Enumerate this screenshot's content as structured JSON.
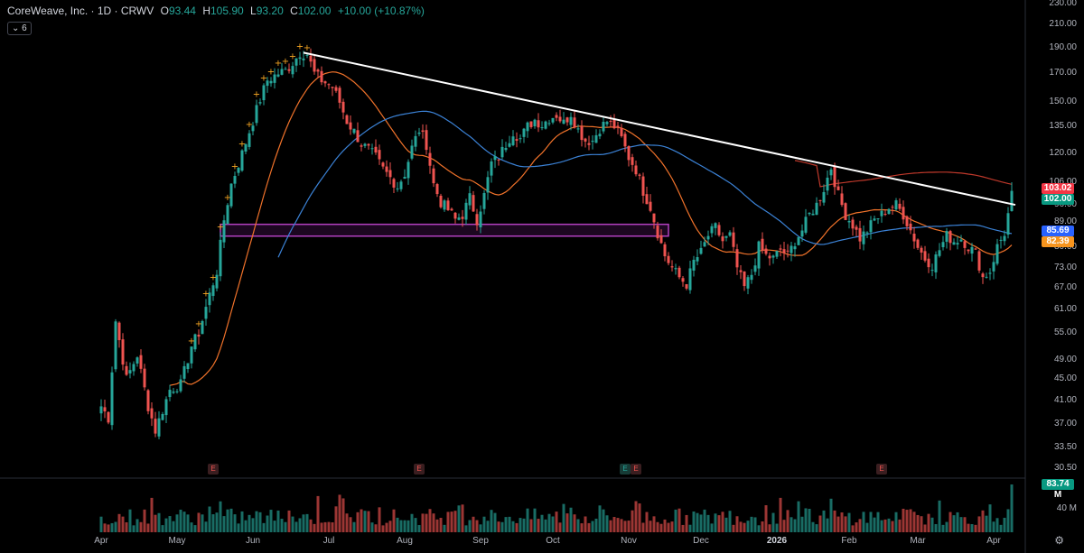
{
  "header": {
    "symbol": "CoreWeave, Inc. · 1D · CRWV",
    "open_label": "O",
    "open": "93.44",
    "high_label": "H",
    "high": "105.90",
    "low_label": "L",
    "low": "93.20",
    "close_label": "C",
    "close": "102.00",
    "change": "+10.00 (+10.87%)",
    "indicator_count": "6"
  },
  "colors": {
    "background": "#000000",
    "up": "#26a69a",
    "down": "#ef5350",
    "ma_fast": "#f0722a",
    "ma_mid": "#3b82d6",
    "ma_slow": "#c0392b",
    "trendline": "#ffffff",
    "zone": "#b340c0",
    "marker": "#f5a623"
  },
  "price_labels": [
    {
      "text": "103.02",
      "value": 103.02,
      "color": "#f23645"
    },
    {
      "text": "102.00",
      "value": 102.0,
      "color": "#089981"
    },
    {
      "text": "85.69",
      "value": 85.69,
      "color": "#2962ff"
    },
    {
      "text": "82.39",
      "value": 82.39,
      "color": "#f7941d"
    }
  ],
  "volume_label": {
    "text": "83.74 M",
    "color": "#089981"
  },
  "volume_axis": "40 M",
  "earnings_marks": [
    {
      "label": "E",
      "index": 31,
      "up": false
    },
    {
      "label": "E",
      "index": 88,
      "up": false
    },
    {
      "label": "E",
      "index": 145,
      "up": true
    },
    {
      "label": "E",
      "index": 148,
      "up": false
    },
    {
      "label": "E",
      "index": 216,
      "up": false
    }
  ],
  "gear_icon": "settings-gear-icon",
  "chart_data": {
    "type": "candlestick",
    "scale": "log",
    "ylim": [
      29.5,
      232
    ],
    "y_ticks": [
      "230.00",
      "210.00",
      "190.00",
      "170.00",
      "150.00",
      "135.00",
      "120.00",
      "106.00",
      "96.00",
      "89.00",
      "80.00",
      "73.00",
      "67.00",
      "61.00",
      "55.00",
      "49.00",
      "45.00",
      "41.00",
      "37.00",
      "33.50",
      "30.50"
    ],
    "x_ticks": [
      {
        "label": "Apr",
        "index": 0
      },
      {
        "label": "May",
        "index": 21
      },
      {
        "label": "Jun",
        "index": 42
      },
      {
        "label": "Jul",
        "index": 63
      },
      {
        "label": "Aug",
        "index": 84
      },
      {
        "label": "Sep",
        "index": 105
      },
      {
        "label": "Oct",
        "index": 125
      },
      {
        "label": "Nov",
        "index": 146
      },
      {
        "label": "Dec",
        "index": 166
      },
      {
        "label": "2026",
        "index": 187,
        "bold": true
      },
      {
        "label": "Feb",
        "index": 207
      },
      {
        "label": "Mar",
        "index": 226
      },
      {
        "label": "Apr",
        "index": 247
      }
    ],
    "anchors": [
      [
        0,
        40
      ],
      [
        2,
        38
      ],
      [
        4,
        58
      ],
      [
        7,
        45
      ],
      [
        10,
        50
      ],
      [
        13,
        40
      ],
      [
        15,
        36
      ],
      [
        19,
        43
      ],
      [
        22,
        44
      ],
      [
        25,
        52
      ],
      [
        27,
        55
      ],
      [
        30,
        65
      ],
      [
        32,
        72
      ],
      [
        34,
        90
      ],
      [
        36,
        105
      ],
      [
        39,
        120
      ],
      [
        41,
        132
      ],
      [
        44,
        152
      ],
      [
        46,
        165
      ],
      [
        49,
        170
      ],
      [
        51,
        172
      ],
      [
        53,
        178
      ],
      [
        55,
        186
      ],
      [
        57,
        185
      ],
      [
        59,
        170
      ],
      [
        61,
        165
      ],
      [
        64,
        160
      ],
      [
        66,
        150
      ],
      [
        68,
        138
      ],
      [
        70,
        132
      ],
      [
        72,
        125
      ],
      [
        74,
        122
      ],
      [
        76,
        118
      ],
      [
        78,
        112
      ],
      [
        80,
        108
      ],
      [
        82,
        104
      ],
      [
        84,
        110
      ],
      [
        86,
        123
      ],
      [
        88,
        133
      ],
      [
        90,
        125
      ],
      [
        92,
        105
      ],
      [
        94,
        97
      ],
      [
        96,
        94
      ],
      [
        98,
        90
      ],
      [
        100,
        92
      ],
      [
        102,
        99
      ],
      [
        104,
        90
      ],
      [
        106,
        100
      ],
      [
        108,
        115
      ],
      [
        110,
        118
      ],
      [
        112,
        125
      ],
      [
        114,
        132
      ],
      [
        116,
        128
      ],
      [
        118,
        135
      ],
      [
        120,
        139
      ],
      [
        122,
        136
      ],
      [
        124,
        140
      ],
      [
        126,
        142
      ],
      [
        128,
        137
      ],
      [
        130,
        143
      ],
      [
        132,
        133
      ],
      [
        134,
        127
      ],
      [
        136,
        127
      ],
      [
        138,
        134
      ],
      [
        140,
        138
      ],
      [
        142,
        135
      ],
      [
        144,
        128
      ],
      [
        146,
        118
      ],
      [
        148,
        112
      ],
      [
        150,
        102
      ],
      [
        152,
        95
      ],
      [
        154,
        85
      ],
      [
        156,
        77
      ],
      [
        158,
        73
      ],
      [
        160,
        70
      ],
      [
        162,
        68
      ],
      [
        164,
        75
      ],
      [
        166,
        78
      ],
      [
        168,
        84
      ],
      [
        170,
        87
      ],
      [
        172,
        82
      ],
      [
        174,
        84
      ],
      [
        176,
        73
      ],
      [
        178,
        67
      ],
      [
        180,
        71
      ],
      [
        182,
        80
      ],
      [
        184,
        77
      ],
      [
        186,
        76
      ],
      [
        188,
        79
      ],
      [
        190,
        77
      ],
      [
        192,
        82
      ],
      [
        194,
        86
      ],
      [
        196,
        92
      ],
      [
        198,
        96
      ],
      [
        200,
        103
      ],
      [
        202,
        113
      ],
      [
        204,
        100
      ],
      [
        206,
        92
      ],
      [
        208,
        88
      ],
      [
        210,
        83
      ],
      [
        212,
        86
      ],
      [
        214,
        90
      ],
      [
        216,
        92
      ],
      [
        218,
        95
      ],
      [
        220,
        96
      ],
      [
        222,
        92
      ],
      [
        224,
        86
      ],
      [
        226,
        80
      ],
      [
        228,
        76
      ],
      [
        230,
        74
      ],
      [
        232,
        79
      ],
      [
        234,
        84
      ],
      [
        236,
        82
      ],
      [
        238,
        83
      ],
      [
        240,
        80
      ],
      [
        242,
        78
      ],
      [
        244,
        70
      ],
      [
        246,
        72
      ],
      [
        248,
        80
      ],
      [
        250,
        85
      ],
      [
        251,
        92
      ],
      [
        252,
        102
      ]
    ],
    "last_candle": {
      "open": 93.44,
      "high": 105.9,
      "low": 93.2,
      "close": 102.0
    },
    "moving_averages": [
      {
        "color": "#f0722a",
        "period": 20
      },
      {
        "color": "#3b82d6",
        "period": 50
      },
      {
        "color": "#c0392b",
        "period": 200
      }
    ],
    "trendline": {
      "from": [
        56,
        186
      ],
      "to": [
        253,
        96
      ]
    },
    "zone": {
      "from_index": 33,
      "to_index": 157,
      "low": 83.8,
      "high": 88.2
    },
    "marker_range": [
      25,
      57
    ]
  }
}
